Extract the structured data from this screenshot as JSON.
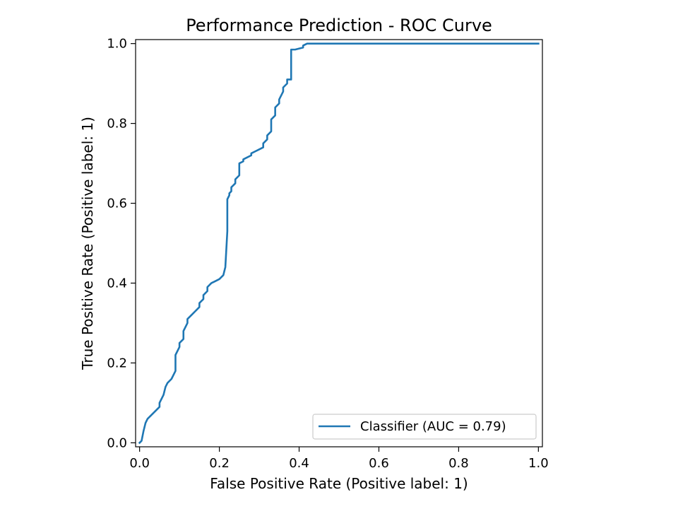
{
  "chart_data": {
    "type": "line",
    "title": "Performance Prediction - ROC Curve",
    "xlabel": "False Positive Rate (Positive label: 1)",
    "ylabel": "True Positive Rate (Positive label: 1)",
    "xlim": [
      -0.01,
      1.01
    ],
    "ylim": [
      -0.01,
      1.01
    ],
    "xticks": [
      "0.0",
      "0.2",
      "0.4",
      "0.6",
      "0.8",
      "1.0"
    ],
    "yticks": [
      "0.0",
      "0.2",
      "0.4",
      "0.6",
      "0.8",
      "1.0"
    ],
    "grid": false,
    "legend_position": "lower-right",
    "series": [
      {
        "name": "Classifier (AUC = 0.79)",
        "color": "#1f77b4",
        "x": [
          0.0,
          0.005,
          0.01,
          0.015,
          0.02,
          0.03,
          0.04,
          0.05,
          0.05,
          0.06,
          0.065,
          0.065,
          0.07,
          0.08,
          0.09,
          0.09,
          0.1,
          0.1,
          0.11,
          0.11,
          0.12,
          0.12,
          0.13,
          0.14,
          0.15,
          0.15,
          0.16,
          0.16,
          0.17,
          0.17,
          0.18,
          0.19,
          0.2,
          0.21,
          0.215,
          0.215,
          0.22,
          0.22,
          0.225,
          0.225,
          0.23,
          0.23,
          0.24,
          0.24,
          0.25,
          0.25,
          0.26,
          0.26,
          0.27,
          0.28,
          0.28,
          0.29,
          0.3,
          0.31,
          0.31,
          0.32,
          0.32,
          0.33,
          0.33,
          0.34,
          0.34,
          0.35,
          0.35,
          0.36,
          0.36,
          0.37,
          0.37,
          0.38,
          0.38,
          0.39,
          0.39,
          0.41,
          0.41,
          0.42,
          0.43,
          1.0
        ],
        "y": [
          0.0,
          0.005,
          0.03,
          0.05,
          0.06,
          0.07,
          0.08,
          0.09,
          0.1,
          0.12,
          0.14,
          0.14,
          0.15,
          0.16,
          0.18,
          0.22,
          0.24,
          0.25,
          0.26,
          0.28,
          0.3,
          0.31,
          0.32,
          0.33,
          0.34,
          0.35,
          0.36,
          0.37,
          0.38,
          0.39,
          0.4,
          0.405,
          0.41,
          0.42,
          0.44,
          0.44,
          0.53,
          0.61,
          0.62,
          0.625,
          0.63,
          0.64,
          0.65,
          0.66,
          0.67,
          0.7,
          0.705,
          0.71,
          0.715,
          0.72,
          0.725,
          0.73,
          0.735,
          0.74,
          0.75,
          0.76,
          0.77,
          0.78,
          0.81,
          0.82,
          0.84,
          0.85,
          0.86,
          0.88,
          0.89,
          0.9,
          0.91,
          0.91,
          0.985,
          0.985,
          0.985,
          0.99,
          0.995,
          1.0,
          1.0,
          1.0
        ]
      }
    ]
  }
}
